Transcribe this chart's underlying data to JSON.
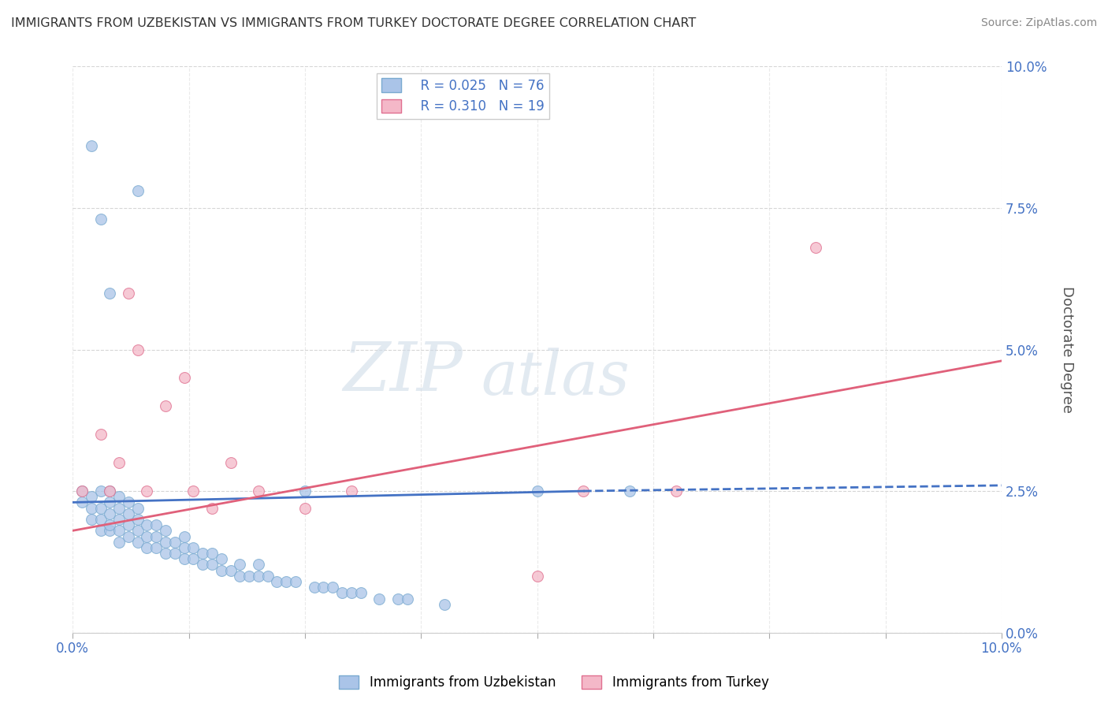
{
  "title": "IMMIGRANTS FROM UZBEKISTAN VS IMMIGRANTS FROM TURKEY DOCTORATE DEGREE CORRELATION CHART",
  "source": "Source: ZipAtlas.com",
  "ylabel": "Doctorate Degree",
  "xlim": [
    0.0,
    0.1
  ],
  "ylim": [
    0.0,
    0.1
  ],
  "yticks": [
    0.0,
    0.025,
    0.05,
    0.075,
    0.1
  ],
  "xticks": [
    0.0,
    0.0125,
    0.025,
    0.0375,
    0.05,
    0.0625,
    0.075,
    0.0875,
    0.1
  ],
  "grid_color": "#cccccc",
  "uzbekistan_color": "#aac4e8",
  "turkey_color": "#f4b8c8",
  "uzbekistan_edge": "#7aaad0",
  "turkey_edge": "#e07090",
  "legend_R_uzbekistan": "R = 0.025",
  "legend_N_uzbekistan": "N = 76",
  "legend_R_turkey": "R = 0.310",
  "legend_N_turkey": "N = 19",
  "uzbekistan_x": [
    0.001,
    0.001,
    0.002,
    0.002,
    0.002,
    0.003,
    0.003,
    0.003,
    0.003,
    0.004,
    0.004,
    0.004,
    0.004,
    0.004,
    0.005,
    0.005,
    0.005,
    0.005,
    0.005,
    0.006,
    0.006,
    0.006,
    0.006,
    0.007,
    0.007,
    0.007,
    0.007,
    0.008,
    0.008,
    0.008,
    0.009,
    0.009,
    0.009,
    0.01,
    0.01,
    0.01,
    0.011,
    0.011,
    0.012,
    0.012,
    0.012,
    0.013,
    0.013,
    0.014,
    0.014,
    0.015,
    0.015,
    0.016,
    0.016,
    0.017,
    0.018,
    0.018,
    0.019,
    0.02,
    0.02,
    0.021,
    0.022,
    0.023,
    0.024,
    0.025,
    0.026,
    0.027,
    0.028,
    0.029,
    0.03,
    0.031,
    0.033,
    0.035,
    0.036,
    0.04,
    0.002,
    0.003,
    0.004,
    0.007,
    0.05,
    0.06
  ],
  "uzbekistan_y": [
    0.023,
    0.025,
    0.02,
    0.022,
    0.024,
    0.018,
    0.02,
    0.022,
    0.025,
    0.018,
    0.019,
    0.021,
    0.023,
    0.025,
    0.016,
    0.018,
    0.02,
    0.022,
    0.024,
    0.017,
    0.019,
    0.021,
    0.023,
    0.016,
    0.018,
    0.02,
    0.022,
    0.015,
    0.017,
    0.019,
    0.015,
    0.017,
    0.019,
    0.014,
    0.016,
    0.018,
    0.014,
    0.016,
    0.013,
    0.015,
    0.017,
    0.013,
    0.015,
    0.012,
    0.014,
    0.012,
    0.014,
    0.011,
    0.013,
    0.011,
    0.01,
    0.012,
    0.01,
    0.01,
    0.012,
    0.01,
    0.009,
    0.009,
    0.009,
    0.025,
    0.008,
    0.008,
    0.008,
    0.007,
    0.007,
    0.007,
    0.006,
    0.006,
    0.006,
    0.005,
    0.086,
    0.073,
    0.06,
    0.078,
    0.025,
    0.025
  ],
  "turkey_x": [
    0.001,
    0.003,
    0.004,
    0.005,
    0.006,
    0.007,
    0.008,
    0.01,
    0.012,
    0.013,
    0.015,
    0.017,
    0.02,
    0.025,
    0.03,
    0.05,
    0.055,
    0.065,
    0.08
  ],
  "turkey_y": [
    0.025,
    0.035,
    0.025,
    0.03,
    0.06,
    0.05,
    0.025,
    0.04,
    0.045,
    0.025,
    0.022,
    0.03,
    0.025,
    0.022,
    0.025,
    0.01,
    0.025,
    0.025,
    0.068
  ],
  "uzbekistan_trendline_x": [
    0.0,
    0.055,
    0.1
  ],
  "uzbekistan_trendline_y": [
    0.023,
    0.025,
    0.026
  ],
  "turkey_trendline_x": [
    0.0,
    0.1
  ],
  "turkey_trendline_y": [
    0.018,
    0.048
  ],
  "watermark_text": "ZIP",
  "watermark_text2": "atlas",
  "background_color": "#ffffff"
}
